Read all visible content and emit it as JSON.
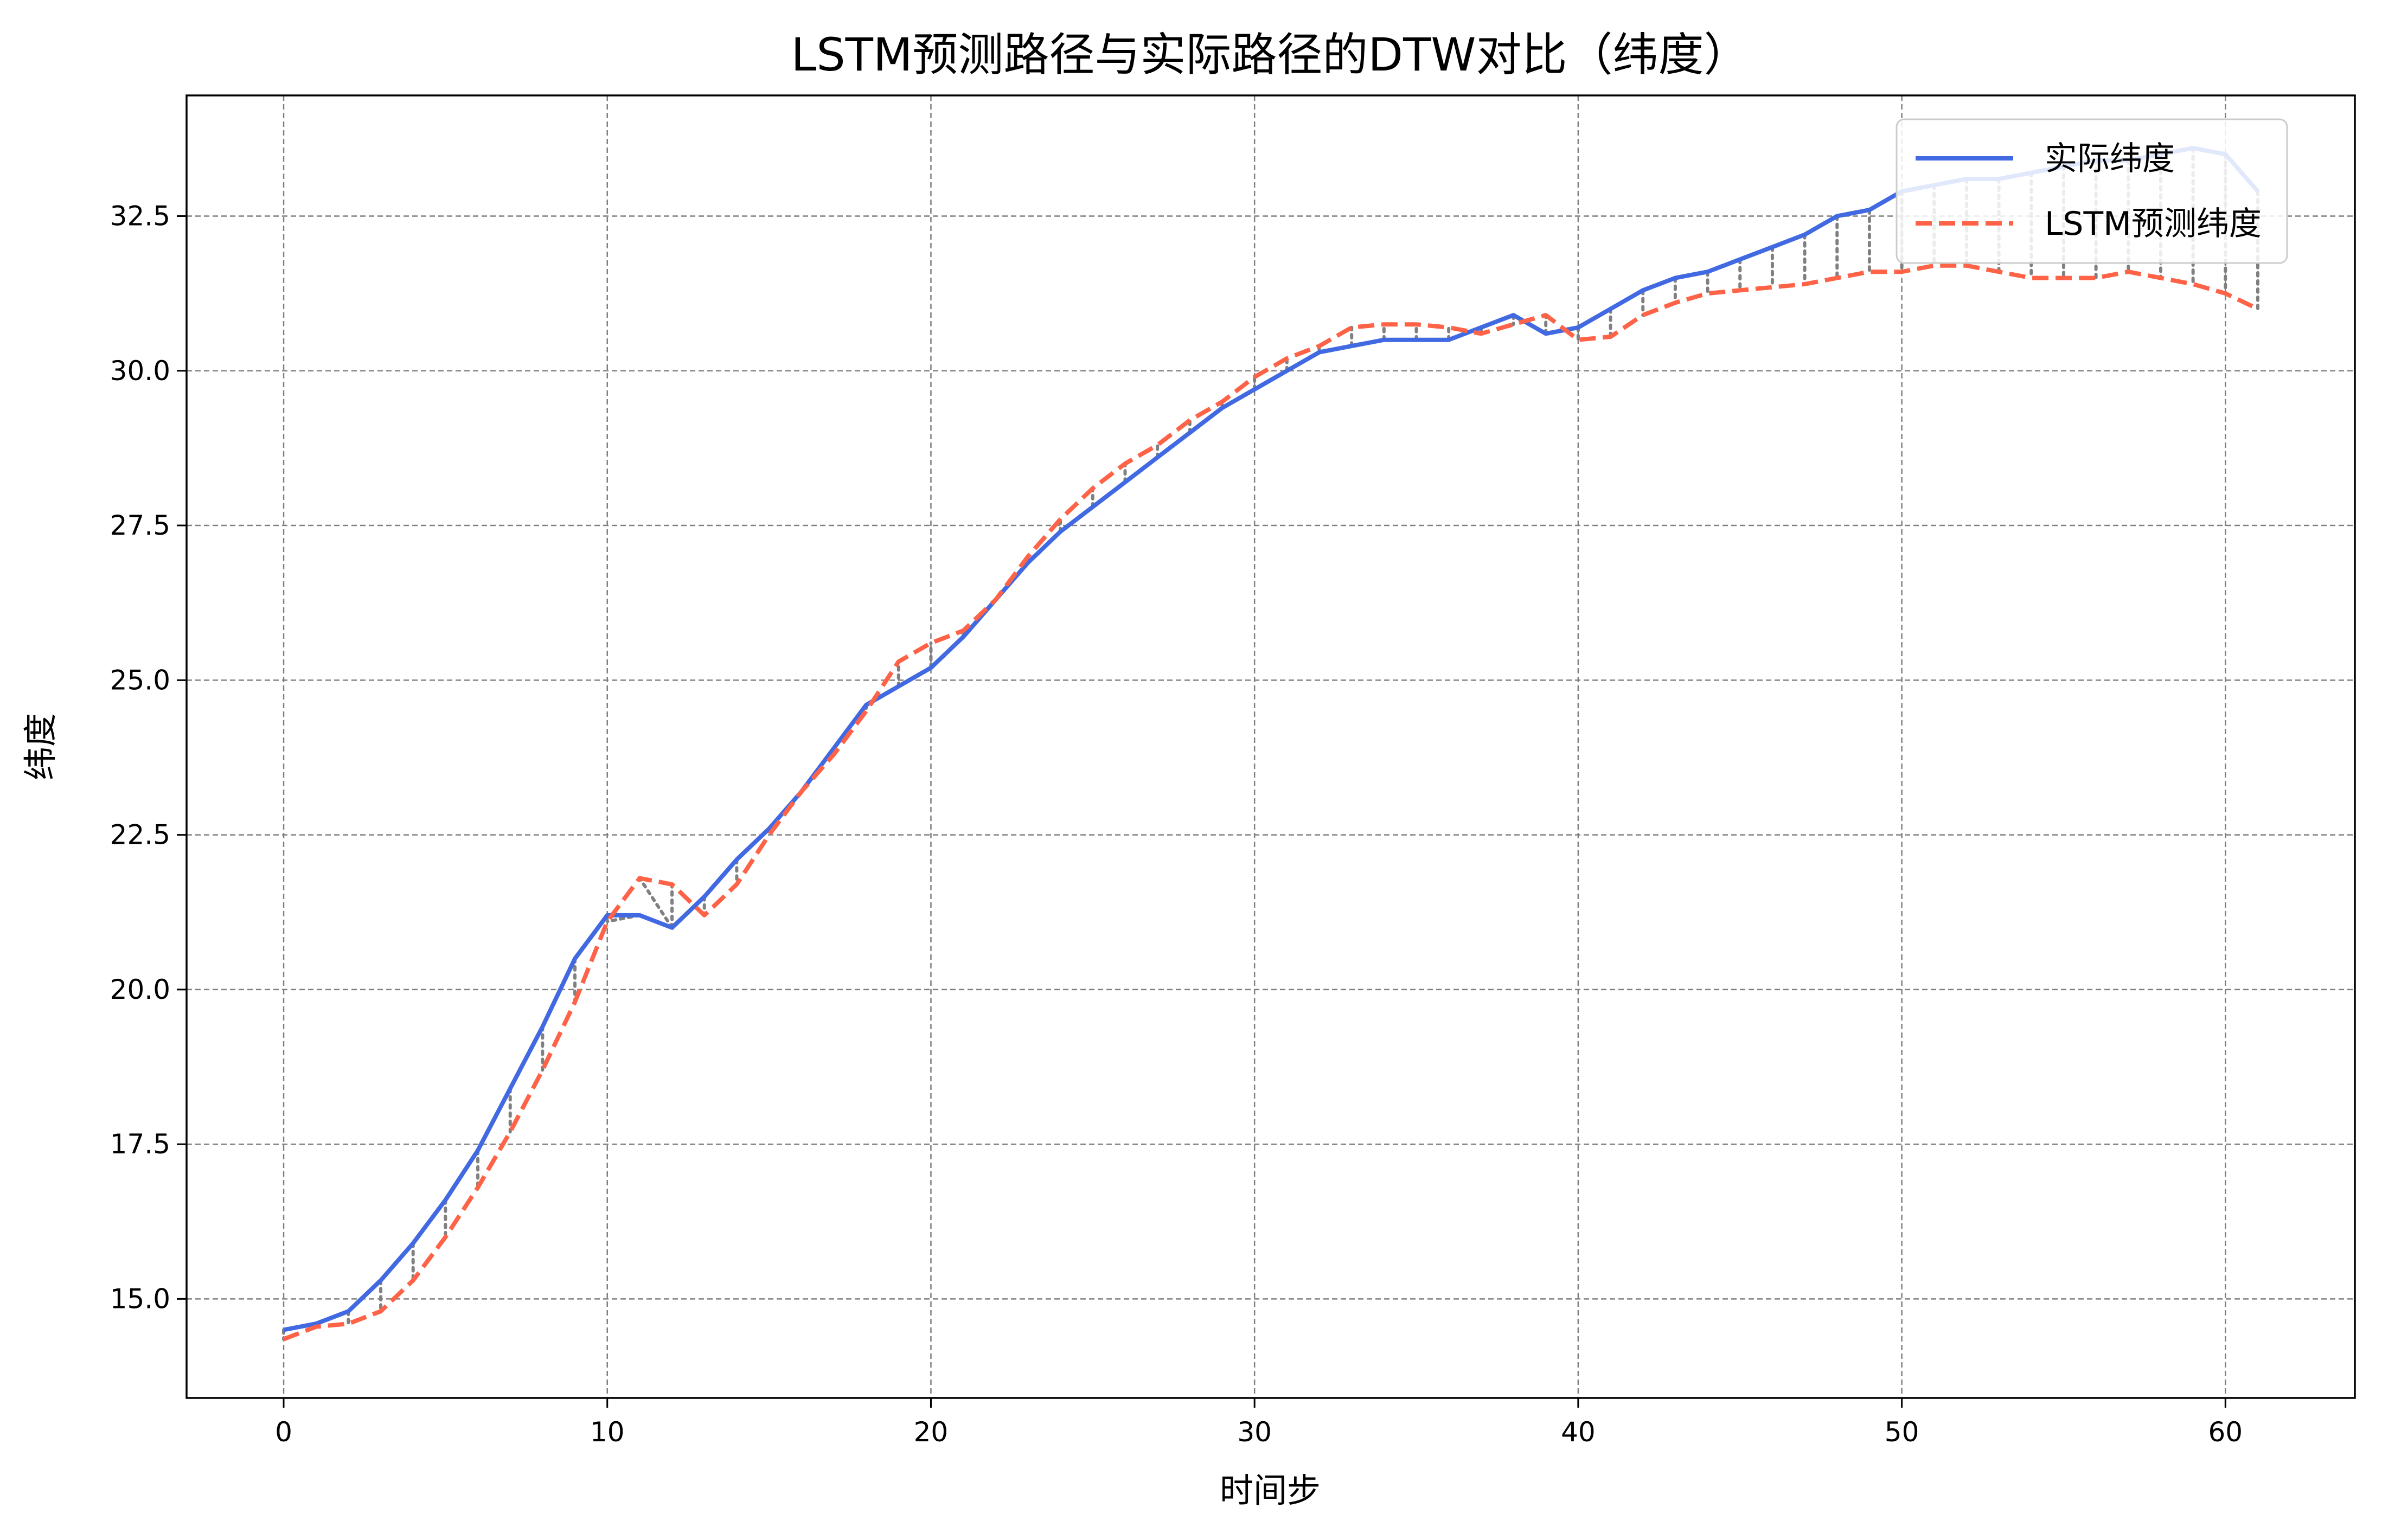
{
  "chart_data": {
    "type": "line",
    "title": "LSTM预测路径与实际路径的DTW对比（纬度）",
    "xlabel": "时间步",
    "ylabel": "纬度",
    "xlim": [
      -3,
      64
    ],
    "ylim": [
      13.4,
      34.45
    ],
    "xticks": [
      0,
      10,
      20,
      30,
      40,
      50,
      60
    ],
    "yticks": [
      15.0,
      17.5,
      20.0,
      22.5,
      25.0,
      27.5,
      30.0,
      32.5
    ],
    "grid": true,
    "legend_position": "top-right",
    "series": [
      {
        "name": "实际纬度",
        "color": "#4169e1",
        "style": "solid",
        "x": [
          0,
          1,
          2,
          3,
          4,
          5,
          6,
          7,
          8,
          9,
          10,
          11,
          12,
          13,
          14,
          15,
          16,
          17,
          18,
          19,
          20,
          21,
          22,
          23,
          24,
          25,
          26,
          27,
          28,
          29,
          30,
          31,
          32,
          33,
          34,
          35,
          36,
          37,
          38,
          39,
          40,
          41,
          42,
          43,
          44,
          45,
          46,
          47,
          48,
          49,
          50,
          51,
          52,
          53,
          54,
          55,
          56,
          57,
          58,
          59,
          60,
          61
        ],
        "values": [
          14.5,
          14.6,
          14.8,
          15.3,
          15.9,
          16.6,
          17.4,
          18.4,
          19.4,
          20.5,
          21.2,
          21.2,
          21.0,
          21.5,
          22.1,
          22.6,
          23.2,
          23.9,
          24.6,
          24.9,
          25.2,
          25.7,
          26.3,
          26.9,
          27.4,
          27.8,
          28.2,
          28.6,
          29.0,
          29.4,
          29.7,
          30.0,
          30.3,
          30.4,
          30.5,
          30.5,
          30.5,
          30.7,
          30.9,
          30.6,
          30.7,
          31.0,
          31.3,
          31.5,
          31.6,
          31.8,
          32.0,
          32.2,
          32.5,
          32.6,
          32.9,
          33.0,
          33.1,
          33.1,
          33.2,
          33.3,
          33.4,
          33.4,
          33.5,
          33.6,
          33.5,
          32.9
        ]
      },
      {
        "name": "LSTM预测纬度",
        "color": "#ff6347",
        "style": "dashed",
        "x": [
          0,
          1,
          2,
          3,
          4,
          5,
          6,
          7,
          8,
          9,
          10,
          11,
          12,
          13,
          14,
          15,
          16,
          17,
          18,
          19,
          20,
          21,
          22,
          23,
          24,
          25,
          26,
          27,
          28,
          29,
          30,
          31,
          32,
          33,
          34,
          35,
          36,
          37,
          38,
          39,
          40,
          41,
          42,
          43,
          44,
          45,
          46,
          47,
          48,
          49,
          50,
          51,
          52,
          53,
          54,
          55,
          56,
          57,
          58,
          59,
          60,
          61
        ],
        "values": [
          14.35,
          14.55,
          14.6,
          14.8,
          15.3,
          16.0,
          16.8,
          17.7,
          18.7,
          19.8,
          21.1,
          21.8,
          21.7,
          21.2,
          21.7,
          22.5,
          23.2,
          23.8,
          24.5,
          25.3,
          25.6,
          25.8,
          26.3,
          27.0,
          27.6,
          28.1,
          28.5,
          28.8,
          29.2,
          29.5,
          29.9,
          30.2,
          30.4,
          30.7,
          30.75,
          30.75,
          30.7,
          30.6,
          30.75,
          30.9,
          30.5,
          30.55,
          30.9,
          31.1,
          31.25,
          31.3,
          31.35,
          31.4,
          31.5,
          31.6,
          31.6,
          31.7,
          31.7,
          31.6,
          31.5,
          31.5,
          31.5,
          31.6,
          31.5,
          31.4,
          31.25,
          31.0
        ]
      }
    ],
    "dtw_alignment_style": "dotted gray",
    "dtw_path": [
      [
        0,
        0
      ],
      [
        1,
        1
      ],
      [
        2,
        2
      ],
      [
        3,
        3
      ],
      [
        4,
        4
      ],
      [
        5,
        5
      ],
      [
        6,
        6
      ],
      [
        7,
        7
      ],
      [
        8,
        8
      ],
      [
        9,
        9
      ],
      [
        10,
        10
      ],
      [
        11,
        10
      ],
      [
        12,
        11
      ],
      [
        12,
        12
      ],
      [
        13,
        13
      ],
      [
        14,
        14
      ],
      [
        15,
        15
      ],
      [
        16,
        16
      ],
      [
        17,
        17
      ],
      [
        18,
        18
      ],
      [
        19,
        19
      ],
      [
        20,
        20
      ],
      [
        21,
        21
      ],
      [
        22,
        22
      ],
      [
        23,
        23
      ],
      [
        24,
        24
      ],
      [
        25,
        25
      ],
      [
        26,
        26
      ],
      [
        27,
        27
      ],
      [
        28,
        28
      ],
      [
        29,
        29
      ],
      [
        30,
        30
      ],
      [
        31,
        31
      ],
      [
        32,
        32
      ],
      [
        33,
        33
      ],
      [
        34,
        34
      ],
      [
        35,
        35
      ],
      [
        36,
        36
      ],
      [
        37,
        37
      ],
      [
        38,
        38
      ],
      [
        39,
        39
      ],
      [
        40,
        40
      ],
      [
        41,
        41
      ],
      [
        42,
        42
      ],
      [
        43,
        43
      ],
      [
        44,
        44
      ],
      [
        45,
        45
      ],
      [
        46,
        46
      ],
      [
        47,
        47
      ],
      [
        48,
        48
      ],
      [
        49,
        49
      ],
      [
        50,
        50
      ],
      [
        51,
        51
      ],
      [
        52,
        52
      ],
      [
        53,
        53
      ],
      [
        54,
        54
      ],
      [
        55,
        55
      ],
      [
        56,
        56
      ],
      [
        57,
        57
      ],
      [
        58,
        58
      ],
      [
        59,
        59
      ],
      [
        60,
        60
      ],
      [
        61,
        61
      ]
    ]
  }
}
